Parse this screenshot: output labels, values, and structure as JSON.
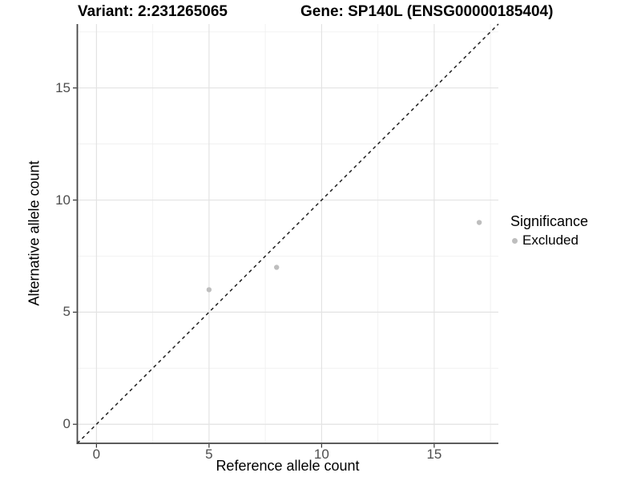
{
  "header": {
    "variant_title": "Variant: 2:231265065",
    "gene_title": "Gene: SP140L (ENSG00000185404)"
  },
  "chart_data": {
    "type": "scatter",
    "title_left": "Variant: 2:231265065",
    "title_right": "Gene: SP140L (ENSG00000185404)",
    "xlabel": "Reference allele count",
    "ylabel": "Alternative allele count",
    "xlim": [
      -0.85,
      17.85
    ],
    "ylim": [
      -0.85,
      17.85
    ],
    "x_major_ticks": [
      0,
      5,
      10,
      15
    ],
    "y_major_ticks": [
      0,
      5,
      10,
      15
    ],
    "x_minor_ticks": [
      2.5,
      7.5,
      12.5,
      17.5
    ],
    "y_minor_ticks": [
      2.5,
      7.5,
      12.5,
      17.5
    ],
    "grid": true,
    "reference_line": {
      "type": "identity",
      "slope": 1,
      "intercept": 0,
      "style": "dashed",
      "color": "#1f1f1f"
    },
    "series": [
      {
        "name": "Excluded",
        "color": "#bebebe",
        "points": [
          {
            "x": 5,
            "y": 6
          },
          {
            "x": 8,
            "y": 7
          },
          {
            "x": 17,
            "y": 9
          }
        ]
      }
    ],
    "legend": {
      "title": "Significance",
      "position": "right",
      "items": [
        {
          "label": "Excluded",
          "color": "#bebebe"
        }
      ]
    },
    "colors": {
      "axis_line": "#454545",
      "tick_mark": "#333333",
      "grid_major": "#e3e3e3",
      "grid_minor": "#f0f0f0",
      "point": "#bebebe",
      "background": "#ffffff"
    }
  }
}
